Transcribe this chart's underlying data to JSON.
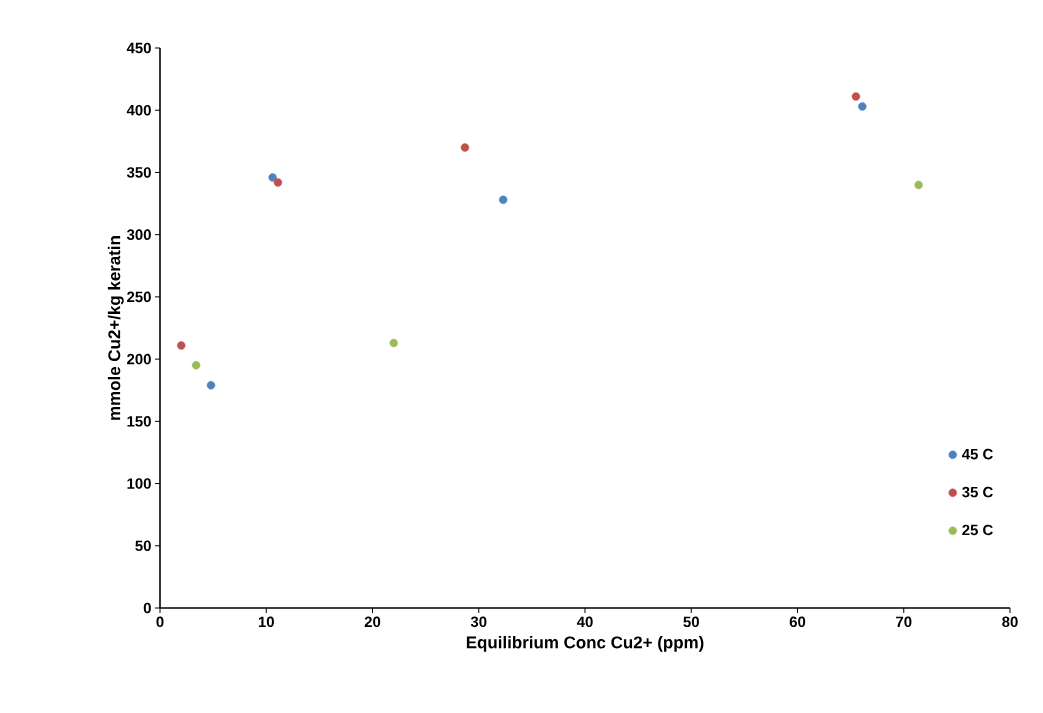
{
  "chart_data": {
    "type": "scatter",
    "xlabel": "Equilibrium Conc Cu2+ (ppm)",
    "ylabel": "mmole Cu2+/kg keratin",
    "xlim": [
      0,
      80
    ],
    "xticks": [
      0,
      10,
      20,
      30,
      40,
      50,
      60,
      70,
      80
    ],
    "ylim": [
      0,
      450
    ],
    "yticks": [
      0,
      50,
      100,
      150,
      200,
      250,
      300,
      350,
      400,
      450
    ],
    "grid": false,
    "legend": "bottom right",
    "marker": "circle",
    "series": [
      {
        "name": "45 C",
        "color": "#4f81bd",
        "x": [
          4.8,
          10.6,
          32.3,
          66.1
        ],
        "values": [
          179,
          346,
          328,
          403
        ]
      },
      {
        "name": "35 C",
        "color": "#c0504d",
        "x": [
          2.0,
          11.1,
          28.7,
          65.5
        ],
        "values": [
          211,
          342,
          370,
          411
        ]
      },
      {
        "name": "25 C",
        "color": "#9bbb59",
        "x": [
          3.4,
          22.0,
          71.4
        ],
        "values": [
          195,
          213,
          340
        ]
      }
    ]
  }
}
